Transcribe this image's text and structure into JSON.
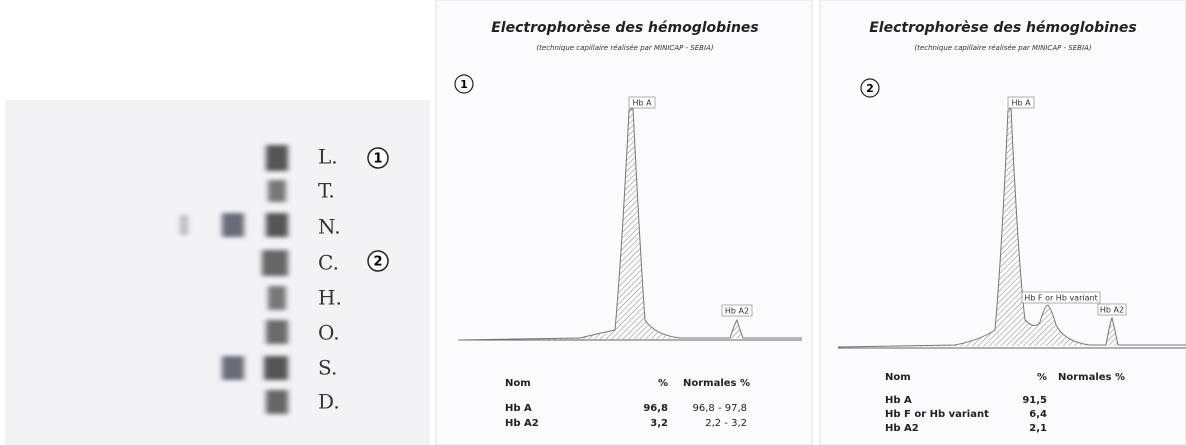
{
  "gel": {
    "lanes": [
      "L.",
      "T.",
      "N.",
      "C.",
      "H.",
      "O.",
      "S.",
      "D."
    ],
    "markers": [
      "1",
      "2"
    ]
  },
  "panels": [
    {
      "title": "Electrophorèse des hémoglobines",
      "subtitle": "(technique capillaire réalisée par MINICAP - SEBIA)",
      "marker": "1",
      "peaks": [
        "Hb A",
        "Hb A2"
      ],
      "table": {
        "header": [
          "Nom",
          "%",
          "Normales %"
        ],
        "rows": [
          [
            "Hb A",
            "96,8",
            "96,8 - 97,8"
          ],
          [
            "Hb A2",
            "3,2",
            "2,2 - 3,2"
          ]
        ]
      }
    },
    {
      "title": "Electrophorèse des hémoglobines",
      "subtitle": "(technique capillaire réalisée par MINICAP - SEBIA)",
      "marker": "2",
      "peaks": [
        "Hb A",
        "Hb F or Hb variant",
        "Hb A2"
      ],
      "table": {
        "header": [
          "Nom",
          "%",
          "Normales %"
        ],
        "rows": [
          [
            "Hb A",
            "91,5"
          ],
          [
            "Hb F or Hb variant",
            "6,4"
          ],
          [
            "Hb A2",
            "2,1"
          ]
        ]
      }
    }
  ]
}
